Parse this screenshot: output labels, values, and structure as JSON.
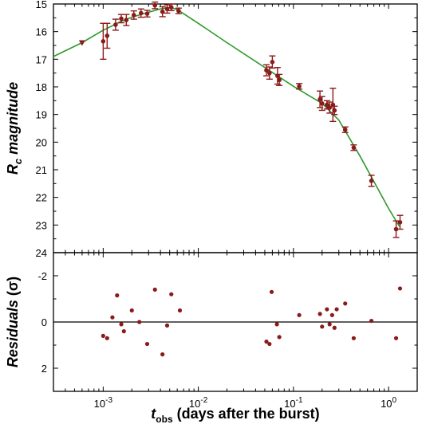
{
  "chart_data": [
    {
      "type": "scatter",
      "role": "light curve",
      "x_scale": "log",
      "y_reversed": true,
      "xlim": [
        0.0003,
        2
      ],
      "ylim": [
        15,
        24
      ],
      "xlabel_main": "t",
      "xlabel_sub": "obs",
      "xlabel_rest": " (days after the burst)",
      "ylabel_main": "R",
      "ylabel_sub": "c",
      "ylabel_rest": " magnitude",
      "x_ticks": [
        0.001,
        0.01,
        0.1,
        1
      ],
      "x_tick_labels": [
        {
          "base": "10",
          "exp": "-3"
        },
        {
          "base": "10",
          "exp": "-2"
        },
        {
          "base": "10",
          "exp": "-1"
        },
        {
          "base": "10",
          "exp": "0"
        }
      ],
      "y_ticks": [
        15,
        16,
        17,
        18,
        19,
        20,
        21,
        22,
        23,
        24
      ],
      "y_tick_labels": [
        "15",
        "16",
        "17",
        "18",
        "19",
        "20",
        "21",
        "22",
        "23",
        "24"
      ],
      "grid": false,
      "point_color": "#8b1a1a",
      "model_color": "#2e9a2e",
      "upper_limit": {
        "x": 0.0006,
        "y": 16.4
      },
      "points": [
        {
          "x": 0.001,
          "y": 16.35,
          "err": 0.65
        },
        {
          "x": 0.0011,
          "y": 16.15,
          "err": 0.45
        },
        {
          "x": 0.00135,
          "y": 15.75,
          "err": 0.2
        },
        {
          "x": 0.00155,
          "y": 15.53,
          "err": 0.15
        },
        {
          "x": 0.00175,
          "y": 15.58,
          "err": 0.2
        },
        {
          "x": 0.0021,
          "y": 15.4,
          "err": 0.15
        },
        {
          "x": 0.0025,
          "y": 15.33,
          "err": 0.15
        },
        {
          "x": 0.0029,
          "y": 15.35,
          "err": 0.12
        },
        {
          "x": 0.0035,
          "y": 15.05,
          "err": 0.12
        },
        {
          "x": 0.0042,
          "y": 15.28,
          "err": 0.18
        },
        {
          "x": 0.0047,
          "y": 15.18,
          "err": 0.15
        },
        {
          "x": 0.0052,
          "y": 15.12,
          "err": 0.12
        },
        {
          "x": 0.0062,
          "y": 15.25,
          "err": 0.1
        },
        {
          "x": 0.052,
          "y": 17.4,
          "err": 0.2
        },
        {
          "x": 0.056,
          "y": 17.5,
          "err": 0.22
        },
        {
          "x": 0.06,
          "y": 17.1,
          "err": 0.22
        },
        {
          "x": 0.068,
          "y": 17.6,
          "err": 0.3
        },
        {
          "x": 0.071,
          "y": 17.75,
          "err": 0.2
        },
        {
          "x": 0.115,
          "y": 17.98,
          "err": 0.1
        },
        {
          "x": 0.19,
          "y": 18.45,
          "err": 0.3
        },
        {
          "x": 0.2,
          "y": 18.6,
          "err": 0.25
        },
        {
          "x": 0.225,
          "y": 18.65,
          "err": 0.15
        },
        {
          "x": 0.24,
          "y": 18.75,
          "err": 0.2
        },
        {
          "x": 0.26,
          "y": 18.65,
          "err": 0.6
        },
        {
          "x": 0.27,
          "y": 18.85,
          "err": 0.15
        },
        {
          "x": 0.35,
          "y": 19.55,
          "err": 0.1
        },
        {
          "x": 0.43,
          "y": 20.2,
          "err": 0.1
        },
        {
          "x": 0.66,
          "y": 21.4,
          "err": 0.2
        },
        {
          "x": 1.2,
          "y": 23.15,
          "err": 0.3
        },
        {
          "x": 1.32,
          "y": 22.9,
          "err": 0.25
        }
      ],
      "model_line": [
        {
          "x": 0.0003,
          "y": 16.9
        },
        {
          "x": 0.0006,
          "y": 16.4
        },
        {
          "x": 0.001,
          "y": 15.95
        },
        {
          "x": 0.0015,
          "y": 15.65
        },
        {
          "x": 0.002,
          "y": 15.48
        },
        {
          "x": 0.003,
          "y": 15.3
        },
        {
          "x": 0.004,
          "y": 15.18
        },
        {
          "x": 0.005,
          "y": 15.12
        },
        {
          "x": 0.006,
          "y": 15.2
        },
        {
          "x": 0.01,
          "y": 15.7
        },
        {
          "x": 0.02,
          "y": 16.4
        },
        {
          "x": 0.05,
          "y": 17.3
        },
        {
          "x": 0.1,
          "y": 17.98
        },
        {
          "x": 0.2,
          "y": 18.6
        },
        {
          "x": 0.3,
          "y": 19.2
        },
        {
          "x": 0.5,
          "y": 20.5
        },
        {
          "x": 1.0,
          "y": 22.4
        },
        {
          "x": 1.3,
          "y": 23.05
        }
      ]
    },
    {
      "type": "scatter",
      "role": "residuals",
      "x_scale": "log",
      "y_reversed": true,
      "xlim": [
        0.0003,
        2
      ],
      "ylim": [
        -3,
        3
      ],
      "ylabel_main": "Residuals",
      "ylabel_rest": " (σ)",
      "y_ticks": [
        -2,
        0,
        2
      ],
      "y_tick_labels": [
        "-2",
        "0",
        "2"
      ],
      "zero_line": 0,
      "point_color": "#8b1a1a",
      "points": [
        {
          "x": 0.001,
          "y": 0.6
        },
        {
          "x": 0.0011,
          "y": 0.7
        },
        {
          "x": 0.00125,
          "y": -0.2
        },
        {
          "x": 0.0014,
          "y": -1.15
        },
        {
          "x": 0.00155,
          "y": 0.1
        },
        {
          "x": 0.00165,
          "y": 0.4
        },
        {
          "x": 0.002,
          "y": -0.5
        },
        {
          "x": 0.0024,
          "y": 0.0
        },
        {
          "x": 0.0029,
          "y": 0.95
        },
        {
          "x": 0.0035,
          "y": -1.4
        },
        {
          "x": 0.0042,
          "y": 1.4
        },
        {
          "x": 0.0047,
          "y": 0.15
        },
        {
          "x": 0.0052,
          "y": -1.2
        },
        {
          "x": 0.0064,
          "y": -0.5
        },
        {
          "x": 0.052,
          "y": 0.85
        },
        {
          "x": 0.056,
          "y": 0.95
        },
        {
          "x": 0.059,
          "y": -1.3
        },
        {
          "x": 0.067,
          "y": 0.1
        },
        {
          "x": 0.071,
          "y": 0.65
        },
        {
          "x": 0.115,
          "y": -0.3
        },
        {
          "x": 0.19,
          "y": -0.35
        },
        {
          "x": 0.2,
          "y": 0.2
        },
        {
          "x": 0.225,
          "y": -0.55
        },
        {
          "x": 0.24,
          "y": 0.1
        },
        {
          "x": 0.255,
          "y": -0.3
        },
        {
          "x": 0.27,
          "y": 0.25
        },
        {
          "x": 0.285,
          "y": -0.55
        },
        {
          "x": 0.35,
          "y": -0.8
        },
        {
          "x": 0.43,
          "y": 0.7
        },
        {
          "x": 0.66,
          "y": -0.05
        },
        {
          "x": 1.2,
          "y": 0.7
        },
        {
          "x": 1.32,
          "y": -1.45
        }
      ]
    }
  ]
}
